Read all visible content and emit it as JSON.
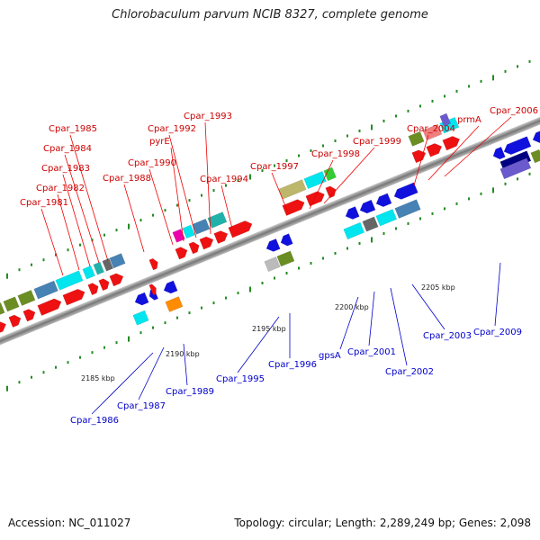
{
  "title": "Chlorobaculum parvum NCIB 8327, complete genome",
  "footer": {
    "accession": "Accession: NC_011027",
    "summary": "Topology: circular; Length: 2,289,249 bp; Genes: 2,098"
  },
  "scale_labels": [
    "2185 kbp",
    "2190 kbp",
    "2195 kbp",
    "2200 kbp",
    "2205 kbp"
  ],
  "top_labels": [
    "Cpar_1981",
    "Cpar_1982",
    "Cpar_1983",
    "Cpar_1984",
    "Cpar_1985",
    "Cpar_1988",
    "Cpar_1990",
    "pyrE",
    "Cpar_1992",
    "Cpar_1993",
    "Cpar_1994",
    "Cpar_1997",
    "Cpar_1998",
    "Cpar_1999",
    "Cpar_2004",
    "prmA",
    "Cpar_2006"
  ],
  "bottom_labels": [
    "Cpar_1986",
    "Cpar_1987",
    "Cpar_1989",
    "Cpar_1995",
    "Cpar_1996",
    "gpsA",
    "Cpar_2001",
    "Cpar_2002",
    "Cpar_2003",
    "Cpar_2009"
  ],
  "colors": {
    "red": "#ee1111",
    "blue": "#1111dd",
    "cyan": "#00e5ee",
    "olive": "#6b8e23",
    "steel": "#4682b4",
    "khaki": "#bdb76b",
    "magenta": "#ee00aa",
    "orange": "#ff8c00",
    "grey": "#bbbbbb",
    "darkgrey": "#666666",
    "green": "#33cc33",
    "salmon": "#f08080",
    "navy": "#000080",
    "slate": "#6a5acd",
    "teal": "#20b2aa"
  }
}
